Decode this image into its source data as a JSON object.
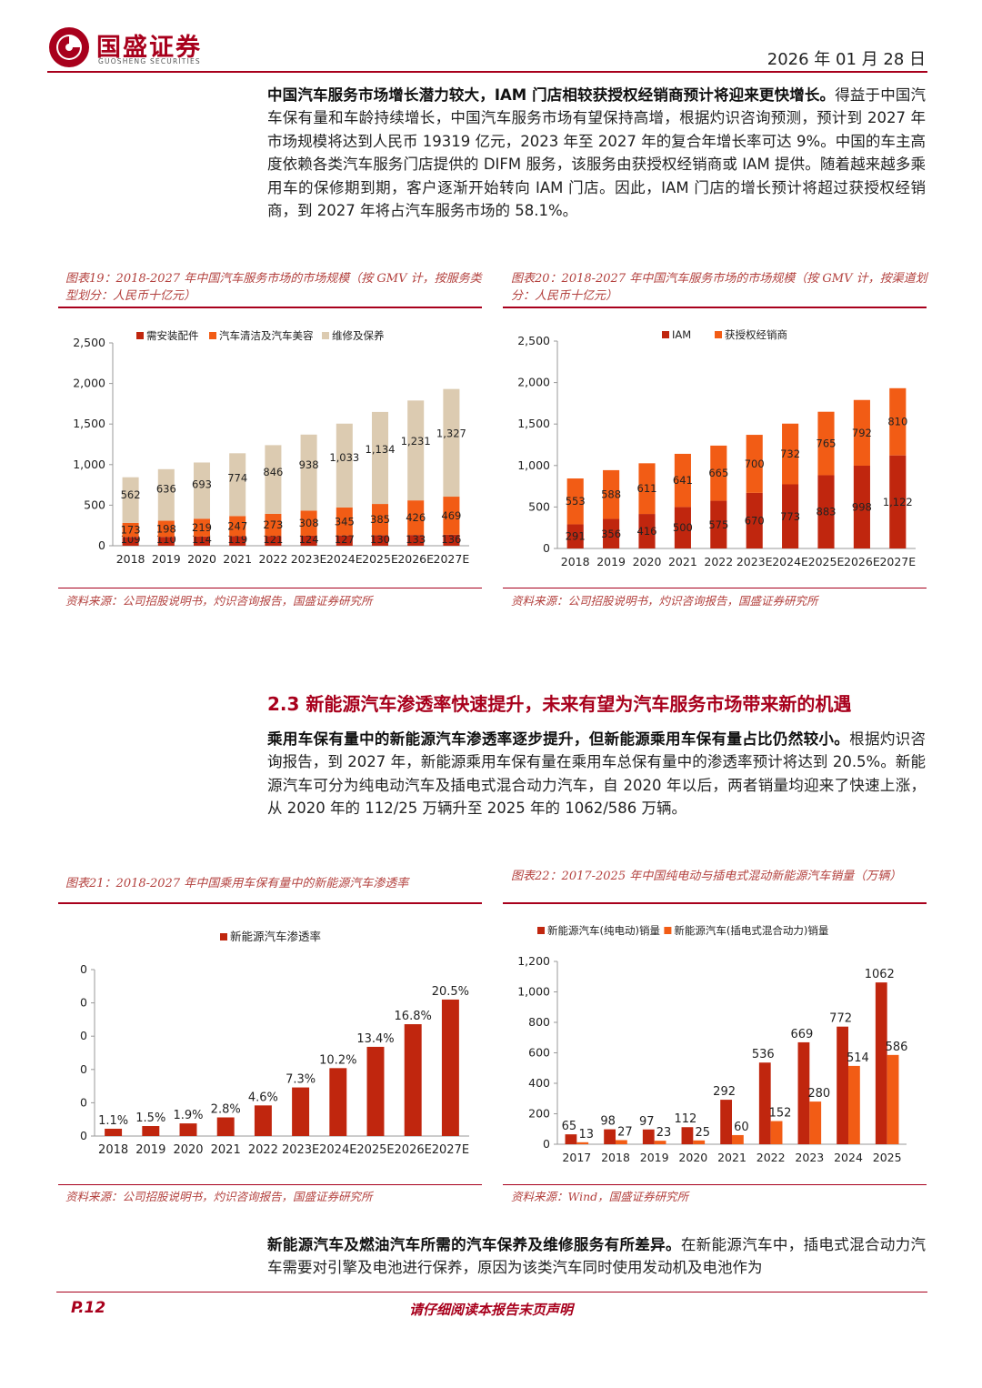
{
  "header": {
    "logo_name": "国盛证券",
    "logo_sub": "GUOSHENG SECURITIES",
    "date": "2026 年 01 月 28 日"
  },
  "para1": {
    "bold": "中国汽车服务市场增长潜力较大，IAM 门店相较获授权经销商预计将迎来更快增长。",
    "text": "得益于中国汽车保有量和车龄持续增长，中国汽车服务市场有望保持高增，根据灼识咨询预测，预计到 2027 年市场规模将达到人民币 19319 亿元，2023 年至 2027 年的复合年增长率可达 9%。中国的车主高度依赖各类汽车服务门店提供的 DIFM 服务，该服务由获授权经销商或 IAM 提供。随着越来越多乘用车的保修期到期，客户逐渐开始转向 IAM 门店。因此，IAM 门店的增长预计将超过获授权经销商，到 2027 年将占汽车服务市场的 58.1%。"
  },
  "fig19": {
    "caption": "图表19：2018-2027 年中国汽车服务市场的市场规模（按 GMV 计，按服务类型划分：人民币十亿元）",
    "source": "资料来源：公司招股说明书，灼识咨询报告，国盛证券研究所"
  },
  "fig20": {
    "caption": "图表20：2018-2027 年中国汽车服务市场的市场规模（按 GMV 计，按渠道划分：人民币十亿元）",
    "source": "资料来源：公司招股说明书，灼识咨询报告，国盛证券研究所"
  },
  "section": {
    "title": "2.3 新能源汽车渗透率快速提升，未来有望为汽车服务市场带来新的机遇"
  },
  "para2": {
    "bold": "乘用车保有量中的新能源汽车渗透率逐步提升，但新能源乘用车保有量占比仍然较小。",
    "text": "根据灼识咨询报告，到 2027 年，新能源乘用车保有量在乘用车总保有量中的渗透率预计将达到 20.5%。新能源汽车可分为纯电动汽车及插电式混合动力汽车，自 2020 年以后，两者销量均迎来了快速上涨，从 2020 年的 112/25 万辆升至 2025 年的 1062/586 万辆。"
  },
  "fig21": {
    "caption": "图表21：2018-2027 年中国乘用车保有量中的新能源汽车渗透率",
    "source": "资料来源：公司招股说明书，灼识咨询报告，国盛证券研究所"
  },
  "fig22": {
    "caption": "图表22：2017-2025 年中国纯电动与插电式混动新能源汽车销量（万辆）",
    "source": "资料来源：Wind，国盛证券研究所"
  },
  "para3": {
    "bold": "新能源汽车及燃油汽车所需的汽车保养及维修服务有所差异。",
    "text": "在新能源汽车中，插电式混合动力汽车需要对引擎及电池进行保养，原因为该类汽车同时使用发动机及电池作为"
  },
  "footer": {
    "page": "P.12",
    "notice": "请仔细阅读本报告末页声明"
  },
  "colors": {
    "dark_red": "#c0260e",
    "orange": "#f25c15",
    "beige": "#dccbb1"
  },
  "chart_data": [
    {
      "id": "fig19",
      "type": "bar",
      "stacked": true,
      "categories": [
        "2018",
        "2019",
        "2020",
        "2021",
        "2022",
        "2023E",
        "2024E",
        "2025E",
        "2026E",
        "2027E"
      ],
      "series": [
        {
          "name": "需安装配件",
          "values": [
            109,
            110,
            114,
            119,
            121,
            124,
            127,
            130,
            133,
            136
          ]
        },
        {
          "name": "汽车清洁及汽车美容",
          "values": [
            173,
            198,
            219,
            247,
            273,
            308,
            345,
            385,
            426,
            469
          ]
        },
        {
          "name": "维修及保养",
          "values": [
            562,
            636,
            693,
            774,
            846,
            938,
            1033,
            1134,
            1231,
            1327
          ]
        }
      ],
      "labels": [
        [
          "109",
          "110",
          "114",
          "119",
          "121",
          "124",
          "127",
          "130",
          "133",
          "136"
        ],
        [
          "173",
          "198",
          "219",
          "247",
          "273",
          "308",
          "345",
          "385",
          "426",
          "469"
        ],
        [
          "562",
          "636",
          "693",
          "774",
          "846",
          "938",
          "1,033",
          "1,134",
          "1,231",
          "1,327"
        ]
      ],
      "yticks": [
        "0",
        "500",
        "1,000",
        "1,500",
        "2,000",
        "2,500"
      ],
      "ylim": [
        0,
        2500
      ]
    },
    {
      "id": "fig20",
      "type": "bar",
      "stacked": true,
      "categories": [
        "2018",
        "2019",
        "2020",
        "2021",
        "2022",
        "2023E",
        "2024E",
        "2025E",
        "2026E",
        "2027E"
      ],
      "series": [
        {
          "name": "IAM",
          "values": [
            291,
            356,
            416,
            500,
            575,
            670,
            773,
            883,
            998,
            1122
          ]
        },
        {
          "name": "获授权经销商",
          "values": [
            553,
            588,
            611,
            641,
            665,
            700,
            732,
            765,
            792,
            810
          ]
        }
      ],
      "labels": [
        [
          "291",
          "356",
          "416",
          "500",
          "575",
          "670",
          "773",
          "883",
          "998",
          "1,122"
        ],
        [
          "553",
          "588",
          "611",
          "641",
          "665",
          "700",
          "732",
          "765",
          "792",
          "810"
        ]
      ],
      "yticks": [
        "0",
        "500",
        "1,000",
        "1,500",
        "2,000",
        "2,500"
      ],
      "ylim": [
        0,
        2500
      ]
    },
    {
      "id": "fig21",
      "type": "bar",
      "categories": [
        "2018",
        "2019",
        "2020",
        "2021",
        "2022",
        "2023E",
        "2024E",
        "2025E",
        "2026E",
        "2027E"
      ],
      "series": [
        {
          "name": "新能源汽车渗透率",
          "values": [
            1.1,
            1.5,
            1.9,
            2.8,
            4.6,
            7.3,
            10.2,
            13.4,
            16.8,
            20.5
          ]
        }
      ],
      "labels": [
        [
          "1.1%",
          "1.5%",
          "1.9%",
          "2.8%",
          "4.6%",
          "7.3%",
          "10.2%",
          "13.4%",
          "16.8%",
          "20.5%"
        ]
      ],
      "yticks": [
        "0",
        "0",
        "0",
        "0",
        "0",
        "0"
      ],
      "ylim": [
        0,
        25
      ]
    },
    {
      "id": "fig22",
      "type": "bar",
      "categories": [
        "2017",
        "2018",
        "2019",
        "2020",
        "2021",
        "2022",
        "2023",
        "2024",
        "2025"
      ],
      "series": [
        {
          "name": "新能源汽车(纯电动)销量",
          "values": [
            65,
            98,
            97,
            112,
            292,
            536,
            669,
            772,
            1062
          ]
        },
        {
          "name": "新能源汽车(插电式混合动力)销量",
          "values": [
            13,
            27,
            23,
            25,
            60,
            152,
            280,
            514,
            586
          ]
        }
      ],
      "labels": [
        [
          "65",
          "98",
          "97",
          "112",
          "292",
          "536",
          "669",
          "772",
          "1062"
        ],
        [
          "13",
          "27",
          "23",
          "25",
          "60",
          "152",
          "280",
          "514",
          "586"
        ]
      ],
      "yticks": [
        "0",
        "200",
        "400",
        "600",
        "800",
        "1,000",
        "1,200"
      ],
      "ylim": [
        0,
        1200
      ]
    }
  ]
}
